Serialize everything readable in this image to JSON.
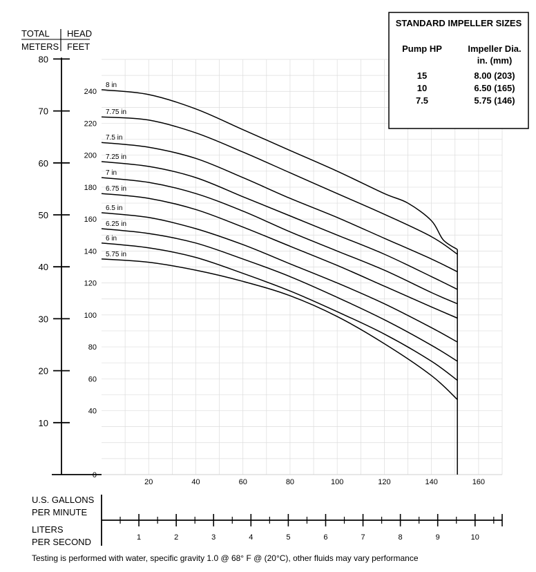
{
  "headers": {
    "total_line1": "TOTAL",
    "total_line2": "METERS",
    "head_line1": "HEAD",
    "head_line2": "FEET"
  },
  "bottom_labels": {
    "gpm_line1": "U.S. GALLONS",
    "gpm_line2": "PER MINUTE",
    "lps_line1": "LITERS",
    "lps_line2": "PER SECOND"
  },
  "footnote": "Testing is performed with water, specific gravity 1.0 @ 68° F @ (20°C), other fluids may vary performance",
  "impeller_table": {
    "title": "STANDARD IMPELLER SIZES",
    "col1": "Pump HP",
    "col2_line1": "Impeller Dia.",
    "col2_line2": "in. (mm)",
    "rows": [
      {
        "hp": "15",
        "dia": "8.00 (203)"
      },
      {
        "hp": "10",
        "dia": "6.50 (165)"
      },
      {
        "hp": "7.5",
        "dia": "5.75 (146)"
      }
    ]
  },
  "chart_data": {
    "type": "line",
    "xlabel": "U.S. GALLONS PER MINUTE",
    "xlim": [
      0,
      170
    ],
    "x_ticks": [
      "20",
      "40",
      "60",
      "80",
      "100",
      "120",
      "140",
      "160"
    ],
    "x_tick_values": [
      20,
      40,
      60,
      80,
      100,
      120,
      140,
      160
    ],
    "ylabel_left": "TOTAL METERS",
    "ylim_meters": [
      0,
      80
    ],
    "y_meters_ticks": [
      "10",
      "20",
      "30",
      "40",
      "50",
      "60",
      "70",
      "80"
    ],
    "y_meters_values": [
      10,
      20,
      30,
      40,
      50,
      60,
      70,
      80
    ],
    "ylabel_right": "HEAD FEET",
    "ylim_feet": [
      0,
      260
    ],
    "y_feet_ticks": [
      "0",
      "40",
      "60",
      "80",
      "100",
      "120",
      "140",
      "160",
      "180",
      "200",
      "220",
      "240"
    ],
    "y_feet_values": [
      0,
      40,
      60,
      80,
      100,
      120,
      140,
      160,
      180,
      200,
      220,
      240
    ],
    "secondary_x_label": "LITERS PER SECOND",
    "lps_ticks": [
      "1",
      "2",
      "3",
      "4",
      "5",
      "6",
      "7",
      "8",
      "9",
      "10"
    ],
    "lps_values": [
      1,
      2,
      3,
      4,
      5,
      6,
      7,
      8,
      9,
      10
    ],
    "grid": true,
    "series": [
      {
        "name": "8 in",
        "x": [
          0,
          20,
          40,
          60,
          80,
          100,
          120,
          130,
          140,
          145,
          151
        ],
        "y": [
          241,
          238,
          229,
          216,
          203,
          190,
          176,
          170,
          159,
          147,
          141
        ]
      },
      {
        "name": "7.75 in",
        "x": [
          0,
          20,
          40,
          60,
          80,
          100,
          120,
          140,
          151
        ],
        "y": [
          224,
          222,
          214,
          202,
          189,
          176,
          163,
          149,
          138
        ]
      },
      {
        "name": "7.5 in",
        "x": [
          0,
          20,
          40,
          60,
          80,
          100,
          120,
          140,
          151
        ],
        "y": [
          208,
          205,
          198,
          186,
          173,
          161,
          148,
          135,
          127
        ]
      },
      {
        "name": "7.25 in",
        "x": [
          0,
          20,
          40,
          60,
          80,
          100,
          120,
          140,
          151
        ],
        "y": [
          196,
          193,
          186,
          174,
          162,
          150,
          138,
          124,
          116
        ]
      },
      {
        "name": "7 in",
        "x": [
          0,
          20,
          40,
          60,
          80,
          100,
          120,
          140,
          151
        ],
        "y": [
          186,
          183,
          176,
          165,
          152,
          140,
          128,
          114,
          107
        ]
      },
      {
        "name": "6.75 in",
        "x": [
          0,
          20,
          40,
          60,
          80,
          100,
          120,
          140,
          151
        ],
        "y": [
          176,
          173,
          166,
          155,
          143,
          131,
          118,
          105,
          98
        ]
      },
      {
        "name": "6.5 in",
        "x": [
          0,
          20,
          40,
          60,
          80,
          100,
          120,
          140,
          151
        ],
        "y": [
          164,
          161,
          154,
          144,
          132,
          120,
          107,
          92,
          83
        ]
      },
      {
        "name": "6.25 in",
        "x": [
          0,
          20,
          40,
          60,
          80,
          100,
          120,
          140,
          151
        ],
        "y": [
          154,
          151,
          145,
          135,
          124,
          111,
          97,
          81,
          71
        ]
      },
      {
        "name": "6 in",
        "x": [
          0,
          20,
          40,
          60,
          80,
          100,
          120,
          140,
          151
        ],
        "y": [
          145,
          142,
          136,
          126,
          115,
          102,
          88,
          71,
          59
        ]
      },
      {
        "name": "5.75 in",
        "x": [
          0,
          20,
          40,
          60,
          80,
          100,
          120,
          140,
          151
        ],
        "y": [
          135,
          133,
          128,
          121,
          112,
          99,
          82,
          62,
          47
        ]
      }
    ]
  }
}
